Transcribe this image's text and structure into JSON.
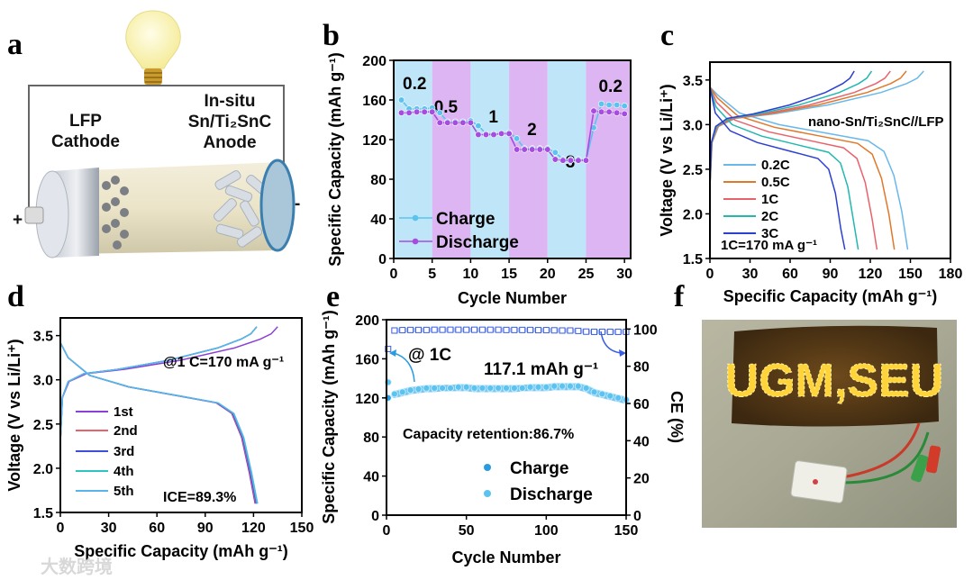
{
  "panel_letters": {
    "a": "a",
    "b": "b",
    "c": "c",
    "d": "d",
    "e": "e",
    "f": "f"
  },
  "watermark": "大数跨境",
  "panel_a": {
    "cathode_line1": "LFP",
    "cathode_line2": "Cathode",
    "anode_line1": "In-situ",
    "anode_line2": "Sn/Ti₂SnC",
    "anode_line3": "Anode",
    "plus": "+",
    "minus": "-"
  },
  "panel_f": {
    "sign_text": "UGM,SEU"
  },
  "colors": {
    "charge_b": "#5bc3ee",
    "discharge_b": "#a64ce0",
    "band_blue": "#bfe6f8",
    "band_purple": "#dcb5f2"
  },
  "chart_data": [
    {
      "id": "b",
      "type": "line",
      "xlabel": "Cycle Number",
      "ylabel": "Specific Capacity (mAh g⁻¹)",
      "xlim": [
        0,
        30.8
      ],
      "ylim": [
        0,
        200
      ],
      "xticks": [
        0,
        5,
        10,
        15,
        20,
        25,
        30
      ],
      "yticks": [
        0,
        40,
        80,
        120,
        160,
        200
      ],
      "bands": [
        {
          "from": 0,
          "to": 5,
          "label": "0.2",
          "color": "blue"
        },
        {
          "from": 5,
          "to": 10,
          "label": "0.5",
          "color": "purple"
        },
        {
          "from": 10,
          "to": 15,
          "label": "1",
          "color": "blue"
        },
        {
          "from": 15,
          "to": 20,
          "label": "2",
          "color": "purple"
        },
        {
          "from": 20,
          "to": 25,
          "label": "3",
          "color": "blue"
        },
        {
          "from": 25,
          "to": 30.8,
          "label": "0.2",
          "color": "purple"
        }
      ],
      "x": [
        1,
        2,
        3,
        4,
        5,
        6,
        7,
        8,
        9,
        10,
        11,
        12,
        13,
        14,
        15,
        16,
        17,
        18,
        19,
        20,
        21,
        22,
        23,
        24,
        25,
        26,
        27,
        28,
        29,
        30
      ],
      "series": [
        {
          "name": "Charge",
          "color": "#5bc3ee",
          "values": [
            160,
            151,
            151,
            151,
            152,
            147,
            138,
            138,
            138,
            139,
            134,
            126,
            126,
            126,
            127,
            121,
            111,
            111,
            111,
            111,
            107,
            100,
            100,
            100,
            99,
            132,
            156,
            155,
            155,
            154
          ]
        },
        {
          "name": "Discharge",
          "color": "#a64ce0",
          "values": [
            147,
            147,
            148,
            148,
            148,
            137,
            137,
            137,
            137,
            137,
            125,
            125,
            125,
            126,
            126,
            110,
            110,
            110,
            110,
            110,
            100,
            99,
            99,
            99,
            99,
            149,
            148,
            148,
            147,
            146
          ]
        }
      ],
      "legend": "bottom-left"
    },
    {
      "id": "c",
      "type": "line",
      "xlabel": "Specific Capacity (mAh g⁻¹)",
      "ylabel": "Voltage (V vs Li/Li⁺)",
      "xlim": [
        0,
        180
      ],
      "ylim": [
        1.5,
        3.7
      ],
      "xticks": [
        0,
        30,
        60,
        90,
        120,
        150,
        180
      ],
      "yticks": [
        1.5,
        2.0,
        2.5,
        3.0,
        3.5
      ],
      "annotation": "nano-Sn/Ti₂SnC//LFP",
      "note": "1C=170 mA g⁻¹",
      "series": [
        {
          "name": "0.2C",
          "color": "#69b8ea",
          "charge_capacity": 160,
          "discharge_capacity": 148,
          "plateau_offset": 0.08
        },
        {
          "name": "0.5C",
          "color": "#e0782a",
          "charge_capacity": 147,
          "discharge_capacity": 138,
          "plateau_offset": 0.05
        },
        {
          "name": "1C",
          "color": "#e8626a",
          "charge_capacity": 135,
          "discharge_capacity": 125,
          "plateau_offset": 0.0
        },
        {
          "name": "2C",
          "color": "#22b8b0",
          "charge_capacity": 121,
          "discharge_capacity": 111,
          "plateau_offset": -0.05
        },
        {
          "name": "3C",
          "color": "#2b3fd0",
          "charge_capacity": 108,
          "discharge_capacity": 101,
          "plateau_offset": -0.12
        }
      ],
      "legend": "bottom-left"
    },
    {
      "id": "d",
      "type": "line",
      "xlabel": "Specific Capacity (mAh g⁻¹)",
      "ylabel": "Voltage (V vs Li/Li⁺)",
      "xlim": [
        0,
        150
      ],
      "ylim": [
        1.5,
        3.7
      ],
      "xticks": [
        0,
        30,
        60,
        90,
        120,
        150
      ],
      "yticks": [
        1.5,
        2.0,
        2.5,
        3.0,
        3.5
      ],
      "annotation": "@1 C=170 mA g⁻¹",
      "note": "ICE=89.3%",
      "series": [
        {
          "name": "1st",
          "color": "#8a3fd6",
          "charge_capacity": 135,
          "discharge_capacity": 121
        },
        {
          "name": "2nd",
          "color": "#e8626a",
          "charge_capacity": 122,
          "discharge_capacity": 121.5
        },
        {
          "name": "3rd",
          "color": "#3d4fd8",
          "charge_capacity": 122,
          "discharge_capacity": 121.8
        },
        {
          "name": "4th",
          "color": "#2ec4c0",
          "charge_capacity": 122,
          "discharge_capacity": 122.2
        },
        {
          "name": "5th",
          "color": "#5ab4ec",
          "charge_capacity": 122,
          "discharge_capacity": 122.5
        }
      ],
      "legend": "bottom-left"
    },
    {
      "id": "e",
      "type": "scatter",
      "xlabel": "Cycle Number",
      "ylabel": "Specific Capacity (mAh g⁻¹)",
      "y2label": "CE (%)",
      "xlim": [
        0,
        150
      ],
      "ylim": [
        0,
        200
      ],
      "y2lim": [
        0,
        105
      ],
      "xticks": [
        0,
        50,
        100,
        150
      ],
      "yticks": [
        0,
        40,
        80,
        120,
        160,
        200
      ],
      "y2ticks": [
        0,
        20,
        40,
        60,
        80,
        100
      ],
      "annotation_rate": "@ 1C",
      "annotation_capacity": "117.1 mAh g⁻¹",
      "annotation_retention": "Capacity retention:86.7%",
      "x": [
        1,
        5,
        10,
        15,
        20,
        25,
        30,
        35,
        40,
        45,
        50,
        55,
        60,
        65,
        70,
        75,
        80,
        85,
        90,
        95,
        100,
        105,
        110,
        115,
        120,
        125,
        130,
        135,
        140,
        145,
        150
      ],
      "series": [
        {
          "name": "Charge",
          "axis": "left",
          "color": "#2a9be0",
          "values": [
            120,
            123,
            125,
            127,
            128,
            129,
            129,
            130,
            130,
            130,
            130,
            129,
            129,
            129,
            129,
            129,
            129,
            130,
            130,
            130,
            130,
            131,
            131,
            131,
            131,
            129,
            125,
            123,
            121,
            119,
            117
          ]
        },
        {
          "name": "Discharge",
          "axis": "left",
          "color": "#5cc2f0",
          "values": [
            136,
            124,
            126,
            128,
            129,
            130,
            130,
            130,
            130,
            131,
            131,
            130,
            130,
            130,
            130,
            130,
            130,
            130,
            131,
            131,
            131,
            132,
            132,
            132,
            132,
            130,
            126,
            124,
            122,
            120,
            118
          ]
        },
        {
          "name": "CE",
          "axis": "right",
          "color": "#3a5ee0",
          "values": [
            89.3,
            99.2,
            99.4,
            99.5,
            99.5,
            99.5,
            99.6,
            99.6,
            99.6,
            99.6,
            99.6,
            99.6,
            99.6,
            99.6,
            99.6,
            99.5,
            99.5,
            99.5,
            99.5,
            99.4,
            99.4,
            99.3,
            99.2,
            99.2,
            99.0,
            98.6,
            98.5,
            98.5,
            98.5,
            98.5,
            98.5
          ]
        }
      ],
      "legend": "bottom-center"
    }
  ]
}
